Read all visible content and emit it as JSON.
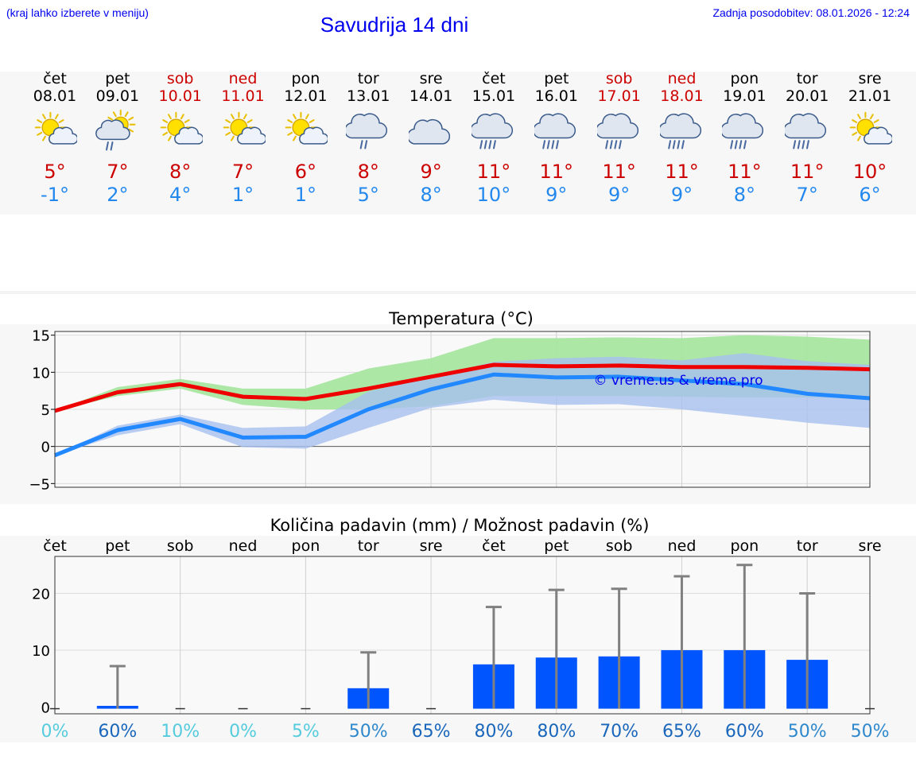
{
  "header": {
    "hint": "(kraj lahko izberete v meniju)",
    "title": "Savudrija 14 dni",
    "updated": "Zadnja posodobitev: 08.01.2026 - 12:24"
  },
  "days": [
    {
      "dow": "čet",
      "date": "08.01",
      "weekend": false,
      "icon": "sun-cloud-icon",
      "tmax": "5°",
      "tmin": "-1°"
    },
    {
      "dow": "pet",
      "date": "09.01",
      "weekend": false,
      "icon": "sun-cloud-drizzle-icon",
      "tmax": "7°",
      "tmin": "2°"
    },
    {
      "dow": "sob",
      "date": "10.01",
      "weekend": true,
      "icon": "sun-cloud-icon",
      "tmax": "8°",
      "tmin": "4°"
    },
    {
      "dow": "ned",
      "date": "11.01",
      "weekend": true,
      "icon": "sun-cloud-icon",
      "tmax": "7°",
      "tmin": "1°"
    },
    {
      "dow": "pon",
      "date": "12.01",
      "weekend": false,
      "icon": "sun-cloud-icon",
      "tmax": "6°",
      "tmin": "1°"
    },
    {
      "dow": "tor",
      "date": "13.01",
      "weekend": false,
      "icon": "cloud-drizzle-icon",
      "tmax": "8°",
      "tmin": "5°"
    },
    {
      "dow": "sre",
      "date": "14.01",
      "weekend": false,
      "icon": "cloud-icon",
      "tmax": "9°",
      "tmin": "8°"
    },
    {
      "dow": "čet",
      "date": "15.01",
      "weekend": false,
      "icon": "cloud-rain-icon",
      "tmax": "11°",
      "tmin": "10°"
    },
    {
      "dow": "pet",
      "date": "16.01",
      "weekend": false,
      "icon": "cloud-rain-icon",
      "tmax": "11°",
      "tmin": "9°"
    },
    {
      "dow": "sob",
      "date": "17.01",
      "weekend": true,
      "icon": "cloud-rain-icon",
      "tmax": "11°",
      "tmin": "9°"
    },
    {
      "dow": "ned",
      "date": "18.01",
      "weekend": true,
      "icon": "cloud-rain-icon",
      "tmax": "11°",
      "tmin": "9°"
    },
    {
      "dow": "pon",
      "date": "19.01",
      "weekend": false,
      "icon": "cloud-rain-icon",
      "tmax": "11°",
      "tmin": "8°"
    },
    {
      "dow": "tor",
      "date": "20.01",
      "weekend": false,
      "icon": "cloud-rain-icon",
      "tmax": "11°",
      "tmin": "7°"
    },
    {
      "dow": "sre",
      "date": "21.01",
      "weekend": false,
      "icon": "sun-cloud-icon",
      "tmax": "10°",
      "tmin": "6°"
    }
  ],
  "colors": {
    "tmax_line": "#ee0000",
    "tmax_band": "#a8e6a0",
    "tmin_line": "#2288ff",
    "tmin_band": "#a8c0f0",
    "bar": "#0055ff",
    "whisker": "#808080",
    "pct_low": "#55ccdd",
    "pct_high": "#1a66bb"
  },
  "chart_data": [
    {
      "type": "line",
      "title": "Temperatura (°C)",
      "watermark": "© vreme.us & vreme.pro",
      "x": [
        0,
        1,
        2,
        3,
        4,
        5,
        6,
        7,
        8,
        9,
        10,
        11,
        12,
        13
      ],
      "ylim": [
        -5.5,
        15.5
      ],
      "yticks": [
        -5,
        0,
        5,
        10,
        15
      ],
      "series": [
        {
          "name": "Tmax",
          "values": [
            4.8,
            7.3,
            8.4,
            6.7,
            6.4,
            7.8,
            9.4,
            11.0,
            10.8,
            10.9,
            10.7,
            10.7,
            10.6,
            10.4
          ],
          "band_low": [
            4.8,
            6.8,
            7.8,
            5.6,
            5.0,
            5.0,
            5.4,
            6.8,
            6.8,
            6.8,
            6.7,
            6.6,
            6.6,
            6.5
          ],
          "band_high": [
            4.8,
            8.0,
            9.1,
            7.8,
            7.8,
            10.5,
            11.9,
            14.6,
            14.6,
            14.7,
            14.6,
            15.0,
            14.8,
            14.4
          ]
        },
        {
          "name": "Tmin",
          "values": [
            -1.2,
            2.2,
            3.7,
            1.2,
            1.3,
            5.0,
            7.7,
            9.7,
            9.3,
            9.4,
            8.9,
            8.4,
            7.1,
            6.5
          ],
          "band_low": [
            -1.2,
            1.5,
            3.0,
            -0.1,
            -0.3,
            2.5,
            5.2,
            6.3,
            5.6,
            5.7,
            5.0,
            4.1,
            3.2,
            2.5
          ],
          "band_high": [
            -1.2,
            2.8,
            4.3,
            2.5,
            2.7,
            7.4,
            9.4,
            11.4,
            11.9,
            12.1,
            11.6,
            12.6,
            11.5,
            11.0
          ]
        }
      ]
    },
    {
      "type": "bar",
      "title": "Količina padavin (mm) / Možnost padavin (%)",
      "categories": [
        "čet",
        "pet",
        "sob",
        "ned",
        "pon",
        "tor",
        "sre",
        "čet",
        "pet",
        "sob",
        "ned",
        "pon",
        "tor",
        "sre"
      ],
      "values": [
        0,
        0.2,
        0,
        0,
        0,
        3.3,
        0,
        7.5,
        8.7,
        8.9,
        10.0,
        10.0,
        8.3,
        0
      ],
      "upper": [
        0,
        7.2,
        0,
        0,
        0,
        9.6,
        0,
        17.6,
        20.6,
        20.8,
        23.0,
        25.0,
        20.0,
        0
      ],
      "probability": [
        "0%",
        "60%",
        "10%",
        "0%",
        "5%",
        "50%",
        "65%",
        "80%",
        "80%",
        "70%",
        "65%",
        "60%",
        "50%",
        "50%"
      ],
      "ylim": [
        -1.2,
        26.5
      ],
      "yticks": [
        0,
        10,
        20
      ]
    }
  ]
}
